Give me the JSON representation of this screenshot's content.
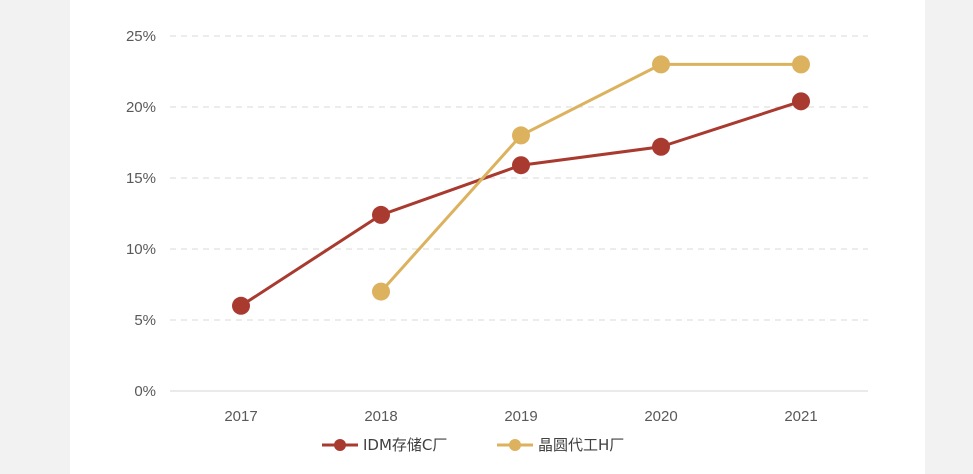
{
  "chart_data": {
    "type": "line",
    "categories": [
      "2017",
      "2018",
      "2019",
      "2020",
      "2021"
    ],
    "y_ticks": [
      "0%",
      "5%",
      "10%",
      "15%",
      "20%",
      "25%"
    ],
    "ylim": [
      0,
      25
    ],
    "grid": true,
    "legend_position": "bottom",
    "series": [
      {
        "name": "IDM存储C厂",
        "color": "#a93a30",
        "values": [
          6.0,
          12.4,
          15.9,
          17.2,
          20.4
        ]
      },
      {
        "name": "晶圆代工H厂",
        "color": "#dcb25e",
        "values": [
          null,
          7.0,
          18.0,
          23.0,
          23.0
        ]
      }
    ]
  }
}
